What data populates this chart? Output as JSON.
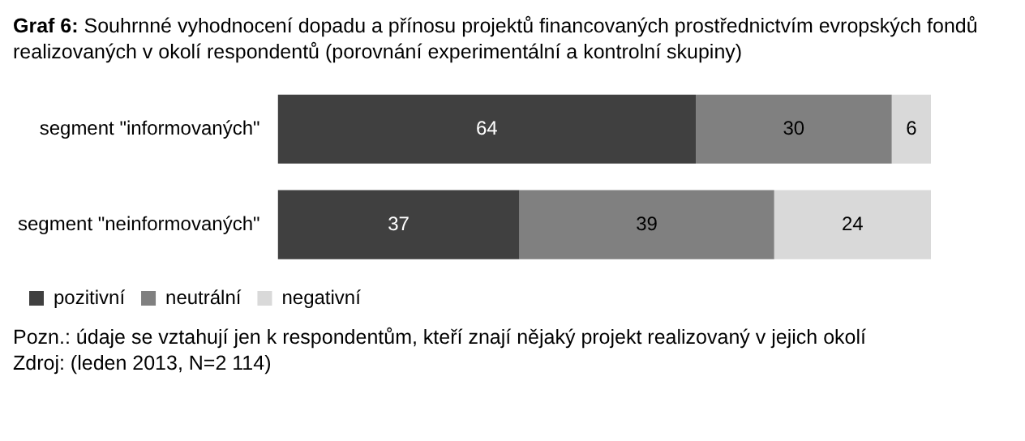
{
  "chart_data": {
    "type": "bar",
    "orientation": "horizontal",
    "stacked": true,
    "title": "Graf 6: Souhrnné vyhodnocení dopadu a přínosu projektů financovaných prostřednictvím evropských fondů realizovaných v okolí respondentů (porovnání experimentální a kontrolní skupiny)",
    "categories": [
      "segment \"informovaných\"",
      "segment \"neinformovaných\""
    ],
    "series": [
      {
        "name": "pozitivní",
        "color": "#404040",
        "values": [
          64,
          37
        ]
      },
      {
        "name": "neutrální",
        "color": "#808080",
        "values": [
          30,
          39
        ]
      },
      {
        "name": "negativní",
        "color": "#d9d9d9",
        "values": [
          6,
          24
        ]
      }
    ],
    "data_labels": true,
    "legend": "bottom left",
    "annotations": [
      "Pozn.: údaje se vztahují jen k respondentům, kteří znají nějaký projekt realizovaný v jejich okolí",
      "Zdroj: (leden 2013, N=2 114)"
    ]
  }
}
